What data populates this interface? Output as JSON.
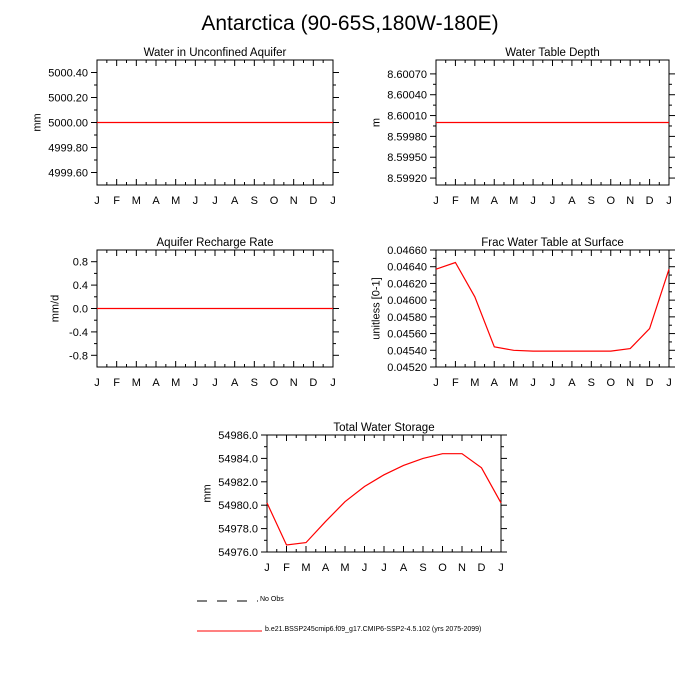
{
  "title": "Antarctica (90-65S,180W-180E)",
  "colors": {
    "model": "#ff0000",
    "axes": "#000000",
    "background": "#ffffff"
  },
  "months": [
    "J",
    "F",
    "M",
    "A",
    "M",
    "J",
    "J",
    "A",
    "S",
    "O",
    "N",
    "D",
    "J"
  ],
  "chart_data": [
    {
      "id": "water-in-unconfined-aquifer",
      "type": "line",
      "title": "Water in Unconfined Aquifer",
      "ylabel": "mm",
      "ylim": [
        4999.5,
        5000.5
      ],
      "yticks": [
        4999.6,
        4999.8,
        5000.0,
        5000.2,
        5000.4
      ],
      "ytick_labels": [
        "4999.60",
        "4999.80",
        "5000.00",
        "5000.20",
        "5000.40"
      ],
      "x": [
        0,
        1,
        2,
        3,
        4,
        5,
        6,
        7,
        8,
        9,
        10,
        11,
        12
      ],
      "series": [
        {
          "values": [
            5000,
            5000,
            5000,
            5000,
            5000,
            5000,
            5000,
            5000,
            5000,
            5000,
            5000,
            5000,
            5000
          ]
        }
      ]
    },
    {
      "id": "water-table-depth",
      "type": "line",
      "title": "Water Table Depth",
      "ylabel": "m",
      "ylim": [
        8.5991,
        8.6009
      ],
      "yticks": [
        8.5992,
        8.5995,
        8.5998,
        8.6001,
        8.6004,
        8.6007
      ],
      "ytick_labels": [
        "8.59920",
        "8.59950",
        "8.59980",
        "8.60010",
        "8.60040",
        "8.60070"
      ],
      "x": [
        0,
        1,
        2,
        3,
        4,
        5,
        6,
        7,
        8,
        9,
        10,
        11,
        12
      ],
      "series": [
        {
          "values": [
            8.6,
            8.6,
            8.6,
            8.6,
            8.6,
            8.6,
            8.6,
            8.6,
            8.6,
            8.6,
            8.6,
            8.6,
            8.6
          ]
        }
      ]
    },
    {
      "id": "aquifer-recharge-rate",
      "type": "line",
      "title": "Aquifer Recharge Rate",
      "ylabel": "mm/d",
      "ylim": [
        -1.0,
        1.0
      ],
      "yticks": [
        -0.8,
        -0.4,
        0.0,
        0.4,
        0.8
      ],
      "ytick_labels": [
        "-0.8",
        "-0.4",
        "0.0",
        "0.4",
        "0.8"
      ],
      "x": [
        0,
        1,
        2,
        3,
        4,
        5,
        6,
        7,
        8,
        9,
        10,
        11,
        12
      ],
      "series": [
        {
          "values": [
            0,
            0,
            0,
            0,
            0,
            0,
            0,
            0,
            0,
            0,
            0,
            0,
            0
          ]
        }
      ]
    },
    {
      "id": "frac-water-table-at-surface",
      "type": "line",
      "title": "Frac Water Table at Surface",
      "ylabel": "unitless [0-1]",
      "ylim": [
        0.0452,
        0.0466
      ],
      "yticks": [
        0.0452,
        0.0454,
        0.0456,
        0.0458,
        0.046,
        0.0462,
        0.0464,
        0.0466
      ],
      "ytick_labels": [
        "0.04520",
        "0.04540",
        "0.04560",
        "0.04580",
        "0.04600",
        "0.04620",
        "0.04640",
        "0.04660"
      ],
      "x": [
        0,
        1,
        2,
        3,
        4,
        5,
        6,
        7,
        8,
        9,
        10,
        11,
        12
      ],
      "series": [
        {
          "values": [
            0.04637,
            0.04645,
            0.04604,
            0.04544,
            0.0454,
            0.04539,
            0.04539,
            0.04539,
            0.04539,
            0.04539,
            0.04542,
            0.04566,
            0.04637
          ]
        }
      ]
    },
    {
      "id": "total-water-storage",
      "type": "line",
      "title": "Total Water Storage",
      "ylabel": "mm",
      "ylim": [
        54976.0,
        54986.0
      ],
      "yticks": [
        54976.0,
        54978.0,
        54980.0,
        54982.0,
        54984.0,
        54986.0
      ],
      "ytick_labels": [
        "54976.0",
        "54978.0",
        "54980.0",
        "54982.0",
        "54984.0",
        "54986.0"
      ],
      "x": [
        0,
        1,
        2,
        3,
        4,
        5,
        6,
        7,
        8,
        9,
        10,
        11,
        12
      ],
      "series": [
        {
          "values": [
            54980.2,
            54976.6,
            54976.8,
            54978.6,
            54980.3,
            54981.6,
            54982.6,
            54983.4,
            54984.0,
            54984.4,
            54984.4,
            54983.2,
            54980.2
          ]
        }
      ]
    }
  ],
  "legend": {
    "obs_label": "No Obs",
    "model_label": "b.e21.BSSP245cmip6.f09_g17.CMIP6-SSP2-4.5.102 (yrs 2075-2099)"
  }
}
